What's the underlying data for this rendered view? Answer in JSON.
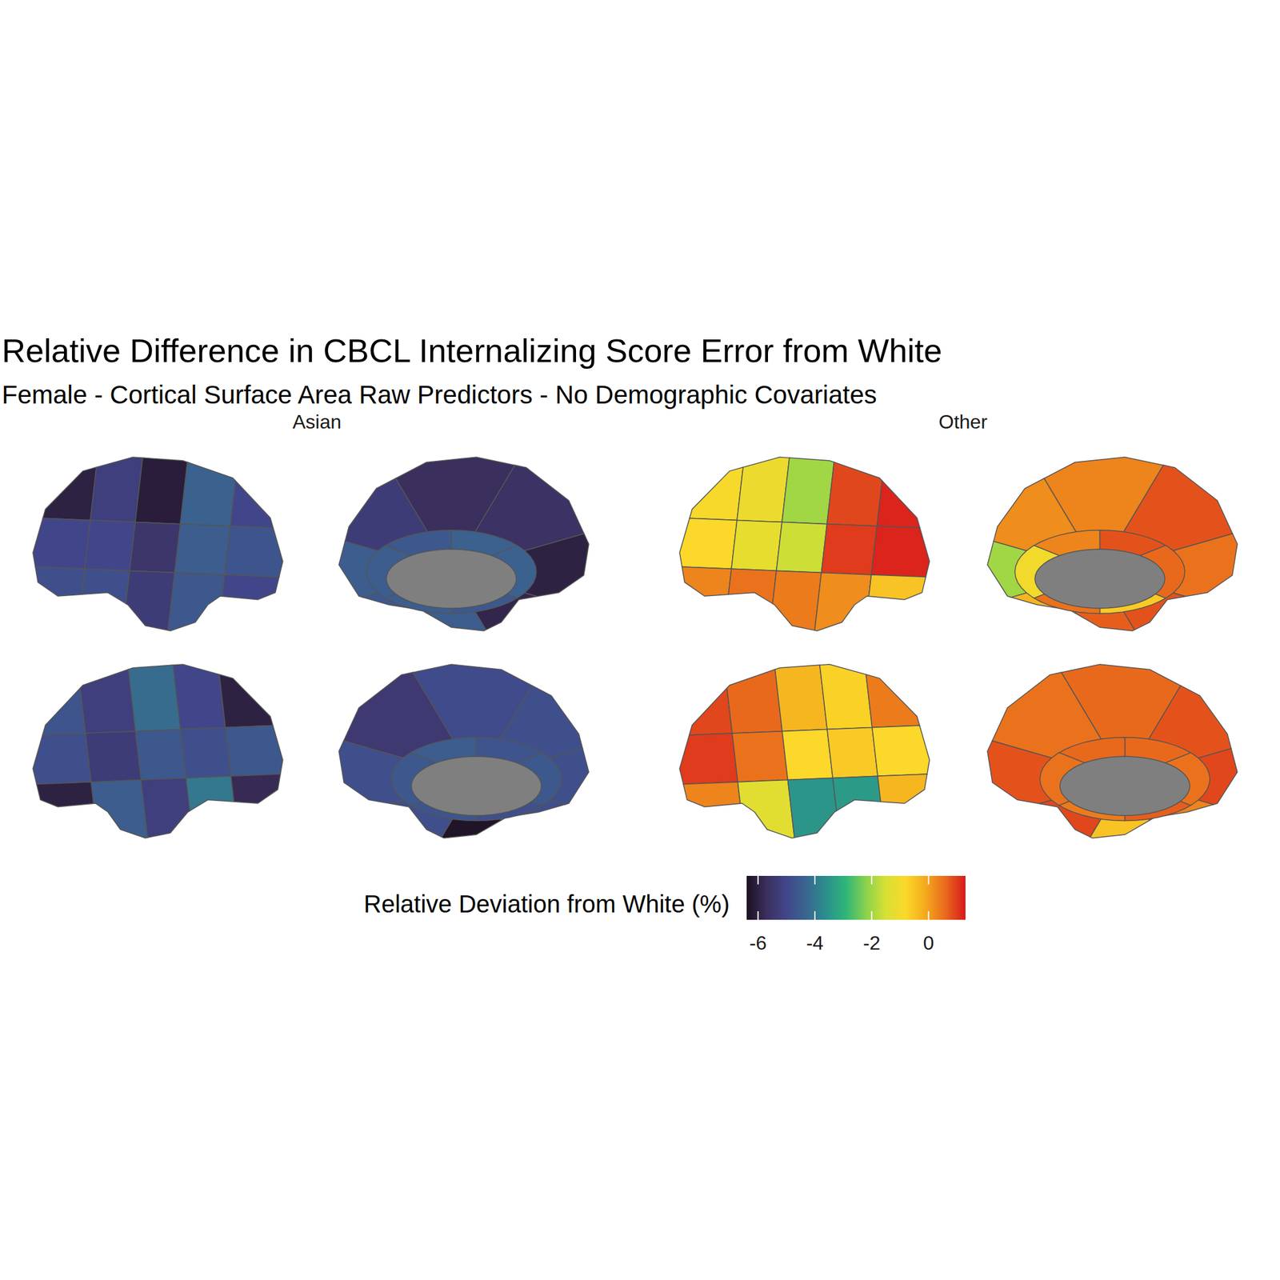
{
  "chart_data": {
    "type": "brain_map",
    "title": "Relative Difference in CBCL Internalizing Score Error from White",
    "subtitle": "Female - Cortical Surface Area Raw Predictors - No Demographic Covariates",
    "colorbar": {
      "label": "Relative Deviation from White (%)",
      "range": [
        -6.4,
        1.3
      ],
      "ticks": [
        -6,
        -4,
        -2,
        0
      ]
    },
    "panels": [
      {
        "name": "Asian",
        "views": [
          [
            -6.0,
            -5.2,
            -6.1,
            -4.4,
            -5.0,
            -5.0,
            -5.0,
            -5.5,
            -4.5,
            -4.7,
            -4.8,
            -4.8,
            -5.3,
            -4.6,
            -5.0
          ],
          [
            -4.5,
            -5.3,
            -5.7,
            -5.6,
            -6.0,
            -5.9,
            -4.5,
            -4.6,
            -4.5,
            -4.6,
            -4.4,
            -4.4,
            -4.6,
            -4.5
          ],
          [
            -4.7,
            -5.2,
            -4.2,
            -5.0,
            -6.0,
            -4.8,
            -5.3,
            -4.6,
            -4.8,
            -4.6,
            -6.0,
            -4.5,
            -5.2,
            -4.0,
            -5.8
          ],
          [
            -4.8,
            -4.8,
            -4.9,
            -5.4,
            -4.8,
            -4.8,
            -6.3,
            -4.8,
            -4.6,
            -4.7,
            -4.5,
            -4.6,
            -4.7,
            -4.8
          ]
        ]
      },
      {
        "name": "Other",
        "views": [
          [
            -0.9,
            -1.1,
            -2.0,
            0.9,
            1.2,
            -0.8,
            -1.2,
            -1.6,
            1.0,
            1.2,
            0.3,
            0.5,
            0.4,
            0.2,
            -0.5
          ],
          [
            -2.0,
            0.2,
            0.3,
            0.8,
            0.5,
            0.8,
            0.7,
            -0.3,
            -1.0,
            0.3,
            0.8,
            0.6,
            -0.6,
            0.5
          ],
          [
            0.9,
            0.6,
            -0.3,
            -0.7,
            0.4,
            1.0,
            0.5,
            -0.8,
            -0.6,
            -0.8,
            0.3,
            -1.3,
            -3.5,
            -3.4,
            -0.3
          ],
          [
            0.9,
            0.8,
            0.6,
            0.5,
            0.8,
            0.9,
            -0.5,
            0.3,
            0.5,
            0.6,
            0.6,
            0.5,
            0.4,
            0.7
          ]
        ]
      }
    ]
  }
}
